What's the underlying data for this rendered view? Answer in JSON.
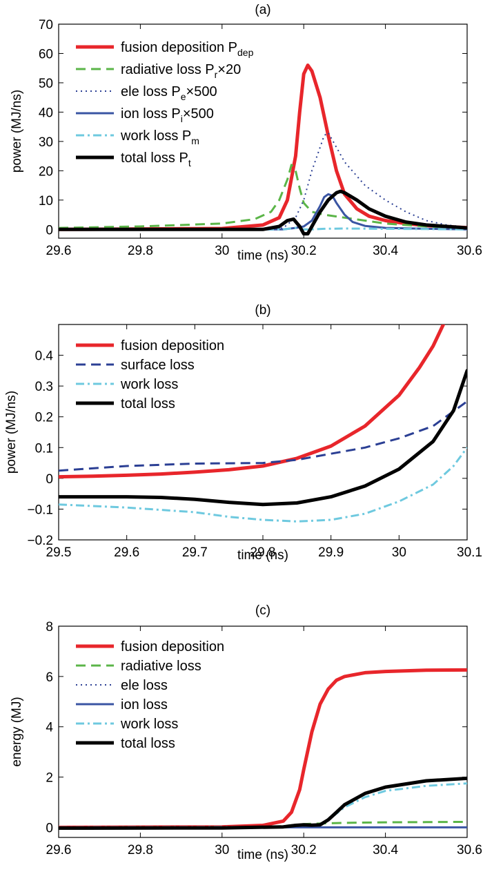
{
  "chart_data": [
    {
      "type": "line",
      "title": "(a)",
      "xlabel": "time (ns)",
      "ylabel": "power (MJ/ns)",
      "xlim": [
        29.6,
        30.6
      ],
      "ylim": [
        -3,
        70
      ],
      "xticks": [
        "29.6",
        "29.8",
        "30",
        "30.2",
        "30.4",
        "30.6"
      ],
      "yticks": [
        "0",
        "10",
        "20",
        "30",
        "40",
        "50",
        "60",
        "70"
      ],
      "grid": false,
      "legend_position": "top-left",
      "series": [
        {
          "name": "fusion deposition P",
          "sub": "dep",
          "suffix": "",
          "color": "#e8262b",
          "style": "solid",
          "width": 5,
          "x": [
            29.6,
            30.0,
            30.1,
            30.14,
            30.16,
            30.18,
            30.19,
            30.2,
            30.21,
            30.22,
            30.24,
            30.26,
            30.28,
            30.3,
            30.33,
            30.36,
            30.4,
            30.45,
            30.5,
            30.6
          ],
          "y": [
            0,
            0.3,
            1.5,
            4,
            10,
            25,
            40,
            53,
            56,
            54,
            45,
            32,
            20,
            12,
            7,
            4.5,
            3,
            2,
            1.3,
            0.6
          ]
        },
        {
          "name": "radiative loss P",
          "sub": "r",
          "suffix": "×20",
          "color": "#5bb548",
          "style": "dash",
          "width": 3,
          "x": [
            29.6,
            29.8,
            30.0,
            30.08,
            30.12,
            30.14,
            30.16,
            30.17,
            30.18,
            30.19,
            30.2,
            30.22,
            30.25,
            30.3,
            30.4,
            30.5,
            30.6
          ],
          "y": [
            0.5,
            1,
            2,
            3.5,
            6,
            10,
            17,
            22,
            20,
            14,
            9,
            6,
            5,
            4,
            2,
            1,
            0.5
          ]
        },
        {
          "name": "ele loss P",
          "sub": "e",
          "suffix": "×500",
          "color": "#2b3f94",
          "style": "dot",
          "width": 2,
          "x": [
            29.6,
            30.1,
            30.15,
            30.18,
            30.2,
            30.22,
            30.24,
            30.25,
            30.26,
            30.28,
            30.3,
            30.35,
            30.4,
            30.45,
            30.5,
            30.55,
            30.6
          ],
          "y": [
            0,
            0,
            0.5,
            4,
            10,
            20,
            28,
            32,
            33,
            28,
            23,
            15,
            10,
            6,
            3,
            1.5,
            0.8
          ]
        },
        {
          "name": "ion loss P",
          "sub": "i",
          "suffix": "×500",
          "color": "#3a55a3",
          "style": "solid",
          "width": 3,
          "x": [
            29.6,
            30.15,
            30.18,
            30.2,
            30.22,
            30.24,
            30.25,
            30.26,
            30.27,
            30.28,
            30.3,
            30.32,
            30.35,
            30.4,
            30.5,
            30.6
          ],
          "y": [
            0,
            0,
            0.5,
            1,
            3,
            8,
            11,
            12,
            11.5,
            9,
            5,
            2.5,
            1.2,
            0.5,
            0.2,
            0
          ]
        },
        {
          "name": "work loss P",
          "sub": "m",
          "suffix": "",
          "color": "#6ec9df",
          "style": "dashdot",
          "width": 3,
          "x": [
            29.6,
            30.15,
            30.18,
            30.2,
            30.22,
            30.25,
            30.3,
            30.4,
            30.5,
            30.6
          ],
          "y": [
            0,
            0,
            0.5,
            0,
            0,
            0.2,
            0.3,
            0.2,
            0.1,
            0
          ]
        },
        {
          "name": "total loss P",
          "sub": "t",
          "suffix": "",
          "color": "#000000",
          "style": "solid",
          "width": 5,
          "x": [
            29.6,
            30.1,
            30.14,
            30.16,
            30.175,
            30.19,
            30.2,
            30.21,
            30.22,
            30.24,
            30.26,
            30.28,
            30.29,
            30.3,
            30.33,
            30.36,
            30.4,
            30.45,
            30.5,
            30.6
          ],
          "y": [
            0,
            0,
            1,
            3,
            3.5,
            1,
            -1.5,
            -1.5,
            1,
            6,
            10,
            12.5,
            13,
            12.5,
            10,
            7,
            4.5,
            2.5,
            1.5,
            0.5
          ]
        }
      ]
    },
    {
      "type": "line",
      "title": "(b)",
      "xlabel": "time (ns)",
      "ylabel": "power (MJ/ns)",
      "xlim": [
        29.5,
        30.1
      ],
      "ylim": [
        -0.2,
        0.5
      ],
      "xticks": [
        "29.5",
        "29.6",
        "29.7",
        "29.8",
        "29.9",
        "30",
        "30.1"
      ],
      "yticks": [
        "−0.2",
        "−0.1",
        "0",
        "0.1",
        "0.2",
        "0.3",
        "0.4"
      ],
      "grid": false,
      "legend_position": "top-left",
      "series": [
        {
          "name": "fusion deposition",
          "color": "#e8262b",
          "style": "solid",
          "width": 5,
          "x": [
            29.5,
            29.55,
            29.6,
            29.65,
            29.7,
            29.75,
            29.8,
            29.85,
            29.9,
            29.95,
            30.0,
            30.03,
            30.05,
            30.065
          ],
          "y": [
            0.005,
            0.007,
            0.01,
            0.014,
            0.02,
            0.028,
            0.04,
            0.065,
            0.105,
            0.17,
            0.27,
            0.36,
            0.43,
            0.5
          ]
        },
        {
          "name": "surface loss",
          "color": "#2b3f94",
          "style": "dash",
          "width": 3,
          "x": [
            29.5,
            29.6,
            29.7,
            29.8,
            29.85,
            29.9,
            29.95,
            30.0,
            30.05,
            30.1
          ],
          "y": [
            0.025,
            0.04,
            0.048,
            0.05,
            0.06,
            0.08,
            0.1,
            0.13,
            0.17,
            0.25
          ]
        },
        {
          "name": "work loss",
          "color": "#6ec9df",
          "style": "dashdot",
          "width": 3,
          "x": [
            29.5,
            29.6,
            29.7,
            29.75,
            29.8,
            29.85,
            29.9,
            29.95,
            30.0,
            30.05,
            30.08,
            30.1
          ],
          "y": [
            -0.085,
            -0.095,
            -0.11,
            -0.125,
            -0.135,
            -0.14,
            -0.135,
            -0.115,
            -0.075,
            -0.02,
            0.04,
            0.1
          ]
        },
        {
          "name": "total loss",
          "color": "#000000",
          "style": "solid",
          "width": 5,
          "x": [
            29.5,
            29.6,
            29.65,
            29.7,
            29.75,
            29.8,
            29.85,
            29.9,
            29.95,
            30.0,
            30.05,
            30.08,
            30.1
          ],
          "y": [
            -0.06,
            -0.06,
            -0.062,
            -0.068,
            -0.078,
            -0.085,
            -0.08,
            -0.06,
            -0.025,
            0.03,
            0.12,
            0.22,
            0.35
          ]
        }
      ]
    },
    {
      "type": "line",
      "title": "(c)",
      "xlabel": "time (ns)",
      "ylabel": "energy (MJ)",
      "xlim": [
        29.6,
        30.6
      ],
      "ylim": [
        -0.4,
        8
      ],
      "xticks": [
        "29.6",
        "29.8",
        "30",
        "30.2",
        "30.4",
        "30.6"
      ],
      "yticks": [
        "0",
        "2",
        "4",
        "6",
        "8"
      ],
      "grid": false,
      "legend_position": "top-left",
      "series": [
        {
          "name": "fusion deposition",
          "color": "#e8262b",
          "style": "solid",
          "width": 5,
          "x": [
            29.6,
            30.0,
            30.1,
            30.15,
            30.17,
            30.19,
            30.2,
            30.22,
            30.24,
            30.26,
            30.28,
            30.3,
            30.35,
            30.4,
            30.5,
            30.6
          ],
          "y": [
            0,
            0.02,
            0.08,
            0.25,
            0.6,
            1.5,
            2.3,
            3.8,
            4.9,
            5.5,
            5.85,
            6.0,
            6.15,
            6.2,
            6.25,
            6.26
          ]
        },
        {
          "name": "radiative loss",
          "color": "#5bb548",
          "style": "dash",
          "width": 3,
          "x": [
            29.6,
            30.1,
            30.15,
            30.18,
            30.2,
            30.25,
            30.3,
            30.4,
            30.5,
            30.6
          ],
          "y": [
            0,
            0.01,
            0.05,
            0.1,
            0.13,
            0.16,
            0.18,
            0.2,
            0.21,
            0.22
          ]
        },
        {
          "name": "ele loss",
          "color": "#2b3f94",
          "style": "dot",
          "width": 2,
          "x": [
            29.6,
            30.6
          ],
          "y": [
            0,
            0
          ]
        },
        {
          "name": "ion loss",
          "color": "#3a55a3",
          "style": "solid",
          "width": 3,
          "x": [
            29.6,
            30.6
          ],
          "y": [
            0,
            0
          ]
        },
        {
          "name": "work loss",
          "color": "#6ec9df",
          "style": "dashdot",
          "width": 3,
          "x": [
            29.6,
            30.15,
            30.2,
            30.24,
            30.26,
            30.28,
            30.3,
            30.35,
            30.4,
            30.5,
            30.6
          ],
          "y": [
            0,
            0.02,
            0.08,
            0.12,
            0.3,
            0.55,
            0.8,
            1.2,
            1.45,
            1.65,
            1.75
          ]
        },
        {
          "name": "total loss",
          "color": "#000000",
          "style": "solid",
          "width": 5,
          "x": [
            29.6,
            30.0,
            30.15,
            30.18,
            30.2,
            30.22,
            30.24,
            30.26,
            30.28,
            30.3,
            30.35,
            30.4,
            30.5,
            30.6
          ],
          "y": [
            -0.03,
            -0.02,
            0.02,
            0.08,
            0.1,
            0.09,
            0.1,
            0.3,
            0.6,
            0.9,
            1.35,
            1.6,
            1.85,
            1.95
          ]
        }
      ]
    }
  ]
}
